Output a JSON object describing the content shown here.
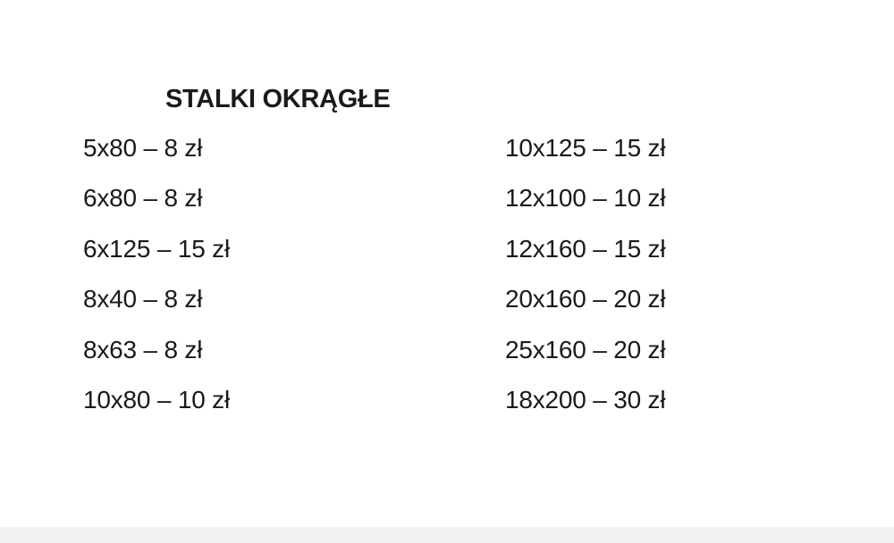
{
  "title": "STALKI OKRĄGŁE",
  "columns": {
    "left": [
      "5x80 – 8 zł",
      "6x80 – 8 zł",
      "6x125 – 15 zł",
      "8x40 – 8 zł",
      "8x63 – 8 zł",
      "10x80 – 10 zł"
    ],
    "right": [
      "10x125 – 15 zł",
      "12x100 – 10 zł",
      "12x160 – 15 zł",
      "20x160 – 20 zł",
      "25x160 – 20 zł",
      "18x200 – 30 zł"
    ]
  },
  "colors": {
    "text": "#1a1a1a",
    "background": "#ffffff",
    "bottom_bar": "#f0f2f4"
  }
}
